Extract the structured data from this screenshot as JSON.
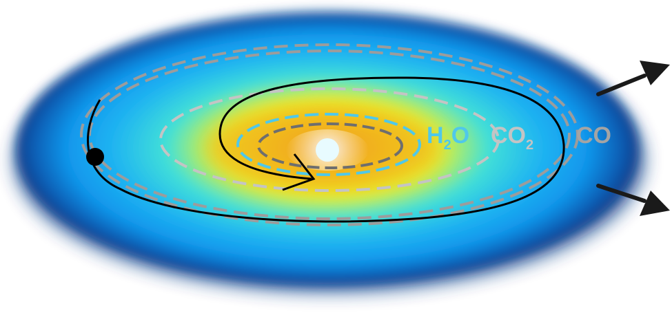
{
  "snowlines": {
    "h2o": {
      "main": "H",
      "sub": "2",
      "tail": "O"
    },
    "co2": {
      "main": "CO",
      "sub": "2"
    },
    "co": {
      "main": "CO"
    }
  },
  "colors": {
    "disk_outer": "#0a3d8a",
    "disk_blue": "#1aa0f0",
    "disk_cyan": "#39dbe6",
    "disk_yellow": "#eef22a",
    "disk_orange": "#f2a51c",
    "star": "#e8fbff",
    "h2o_line": "#4fc8ea",
    "co2_line": "#b5b5b5",
    "co_line": "#9a9a9a",
    "inner_line": "#6e6e6e",
    "path": "#000000",
    "arrow": "#1a1a1a"
  },
  "icons": {
    "planet": "filled-dot",
    "star": "bright-dot",
    "flow": "arrow"
  }
}
